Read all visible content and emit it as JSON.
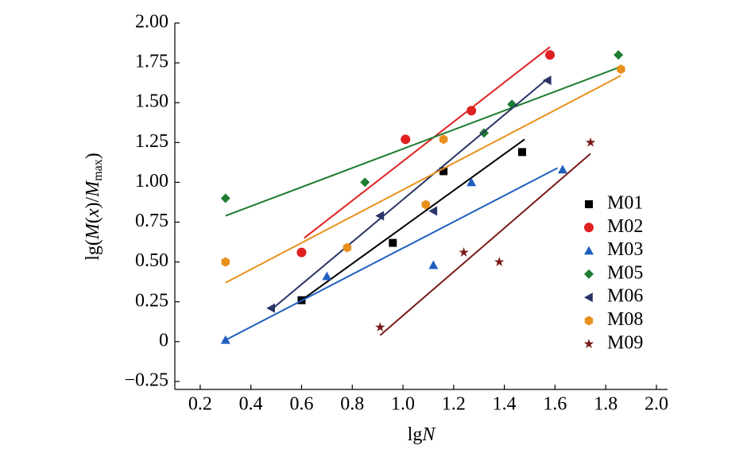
{
  "chart_data": {
    "type": "scatter",
    "x_label": [
      "lg",
      "N"
    ],
    "y_label": [
      "lg(",
      "M",
      "(",
      "x",
      ")/",
      "M",
      "max",
      ")"
    ],
    "xlim": [
      0.1,
      2.0
    ],
    "ylim": [
      -0.3,
      2.0
    ],
    "xticks": [
      0.2,
      0.4,
      0.6,
      0.8,
      {
        "value": 1.0,
        "label": "1.0"
      },
      1.2,
      1.4,
      1.6,
      1.8,
      {
        "value": 2.0,
        "label": "2.0"
      }
    ],
    "yticks": [
      {
        "value": -0.25,
        "label": "−0.25"
      },
      0,
      0.25,
      {
        "value": 0.5,
        "label": "0.50"
      },
      0.75,
      {
        "value": 1.0,
        "label": "1.00"
      },
      1.25,
      {
        "value": 1.5,
        "label": "1.50"
      },
      1.75,
      {
        "value": 2.0,
        "label": "2.00"
      }
    ],
    "series": [
      {
        "name": "M01",
        "color": "#000000",
        "marker": "square",
        "x": [
          0.6,
          0.96,
          1.16,
          1.47
        ],
        "values": [
          0.26,
          0.62,
          1.07,
          1.19
        ],
        "fit": {
          "x": [
            0.6,
            1.48
          ],
          "values": [
            0.26,
            1.27
          ]
        }
      },
      {
        "name": "M02",
        "color": "#e02020",
        "marker": "circle",
        "x": [
          0.6,
          1.01,
          1.27,
          1.58
        ],
        "values": [
          0.56,
          1.27,
          1.45,
          1.8
        ],
        "fit": {
          "x": [
            0.61,
            1.58
          ],
          "values": [
            0.65,
            1.85
          ]
        }
      },
      {
        "name": "M03",
        "color": "#1f5fbf",
        "marker": "triangle-up",
        "x": [
          0.3,
          0.7,
          1.12,
          1.27,
          1.63
        ],
        "values": [
          0.01,
          0.41,
          0.48,
          1.0,
          1.08
        ],
        "fit": {
          "x": [
            0.3,
            1.61
          ],
          "values": [
            0.01,
            1.09
          ]
        }
      },
      {
        "name": "M05",
        "color": "#1e7d32",
        "marker": "diamond",
        "x": [
          0.3,
          0.85,
          1.32,
          1.43,
          1.85
        ],
        "values": [
          0.9,
          1.0,
          1.31,
          1.49,
          1.8
        ],
        "fit": {
          "x": [
            0.3,
            1.85
          ],
          "values": [
            0.79,
            1.72
          ]
        }
      },
      {
        "name": "M06",
        "color": "#2a3566",
        "marker": "triangle-left",
        "x": [
          0.48,
          0.91,
          1.12,
          1.57
        ],
        "values": [
          0.21,
          0.79,
          0.82,
          1.64
        ],
        "fit": {
          "x": [
            0.48,
            1.57
          ],
          "values": [
            0.2,
            1.65
          ]
        }
      },
      {
        "name": "M08",
        "color": "#e8901c",
        "marker": "hexagon",
        "x": [
          0.3,
          0.78,
          1.09,
          1.16,
          1.86
        ],
        "values": [
          0.5,
          0.59,
          0.86,
          1.27,
          1.71
        ],
        "fit": {
          "x": [
            0.3,
            1.86
          ],
          "values": [
            0.37,
            1.67
          ]
        }
      },
      {
        "name": "M09",
        "color": "#7a1a1a",
        "marker": "star",
        "x": [
          0.91,
          1.24,
          1.38,
          1.74
        ],
        "values": [
          0.09,
          0.56,
          0.5,
          1.25
        ],
        "fit": {
          "x": [
            0.91,
            1.74
          ],
          "values": [
            0.04,
            1.18
          ]
        }
      }
    ]
  }
}
